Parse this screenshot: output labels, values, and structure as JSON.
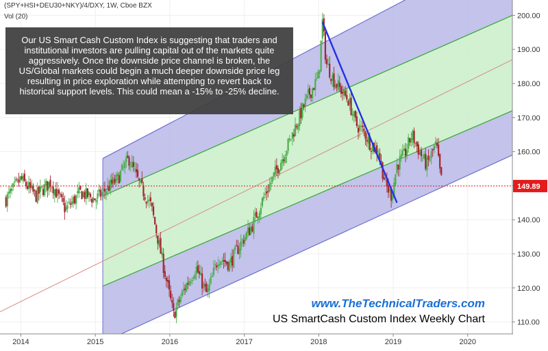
{
  "header": {
    "symbol_line": "(SPY+HSI+DEU30+NKY)/4/DXY, 1W, Cboe BZX",
    "volume_label": "Vol (20)"
  },
  "annotation": {
    "text": "Our US Smart Cash Custom Index is suggesting that traders and institutional investors are pulling capital out of the markets quite aggressively.  Once the downside price channel is broken, the US/Global markets could begin a much deeper downside price leg resulting in price exploration while attempting to revert back to historical support levels.  This could mean a -15% to -25% decline."
  },
  "watermark": {
    "website": "www.TheTechnicalTraders.com",
    "subtitle": "US SmartCash Custom Index Weekly Chart"
  },
  "chart_data": {
    "type": "line",
    "title": "",
    "x": [
      2013.8,
      2014.0,
      2014.2,
      2014.4,
      2014.6,
      2014.8,
      2015.0,
      2015.15,
      2015.3,
      2015.45,
      2015.6,
      2015.75,
      2015.9,
      2016.05,
      2016.2,
      2016.35,
      2016.5,
      2016.65,
      2016.8,
      2016.95,
      2017.1,
      2017.25,
      2017.4,
      2017.55,
      2017.7,
      2017.85,
      2018.0,
      2018.05,
      2018.1,
      2018.2,
      2018.3,
      2018.4,
      2018.5,
      2018.6,
      2018.7,
      2018.8,
      2018.9,
      2018.98,
      2019.05,
      2019.15,
      2019.25,
      2019.35,
      2019.45,
      2019.55,
      2019.58,
      2019.62,
      2019.66
    ],
    "series": [
      {
        "values": [
          146,
          152,
          147,
          151,
          143,
          148,
          146,
          149,
          152,
          158,
          150,
          144,
          128,
          112,
          120,
          126,
          118,
          129,
          127,
          133,
          138,
          146,
          153,
          160,
          168,
          176,
          182,
          198,
          186,
          181,
          178,
          175,
          168,
          166,
          162,
          160,
          150,
          147,
          156,
          159,
          165,
          160,
          156,
          161,
          162,
          155,
          150
        ]
      }
    ],
    "last_price_label": "149.89",
    "last_price": 149.89,
    "x_ticks": [
      "2014",
      "2015",
      "2016",
      "2017",
      "2018",
      "2019",
      "2020"
    ],
    "x_tick_values": [
      2014,
      2015,
      2016,
      2017,
      2018,
      2019,
      2020
    ],
    "y_ticks": [
      "110.00",
      "120.00",
      "130.00",
      "140.00",
      "150.00",
      "160.00",
      "170.00",
      "180.00",
      "190.00",
      "200.00"
    ],
    "y_tick_values": [
      110,
      120,
      130,
      140,
      150,
      160,
      170,
      180,
      190,
      200
    ],
    "xlim": [
      2013.72,
      2020.6
    ],
    "ylim": [
      106.5,
      204.5
    ],
    "channel": {
      "start_x": 2015.1,
      "end_x": 2020.6,
      "outer_top": [
        158,
        221
      ],
      "inner_top": [
        147,
        200
      ],
      "middle": [
        137,
        187
      ],
      "inner_bottom": [
        120.5,
        172
      ],
      "outer_bottom": [
        104,
        159
      ]
    },
    "trendline": {
      "x": [
        2018.05,
        2019.05
      ],
      "y": [
        198,
        145
      ]
    },
    "regression_line": {
      "x": [
        2013.72,
        2020.6
      ],
      "y": [
        113,
        187
      ]
    },
    "colors": {
      "outer_band": "#b9b9e8",
      "inner_band": "#c9efc9",
      "channel_edge": "#6e6ed2",
      "channel_inner_edge": "#39a539",
      "trendline": "#2230e6",
      "regression_line": "#d98a82",
      "price_line": "#e21b1b",
      "up_candle": "#4cae4c",
      "down_candle": "#a3262c"
    }
  }
}
